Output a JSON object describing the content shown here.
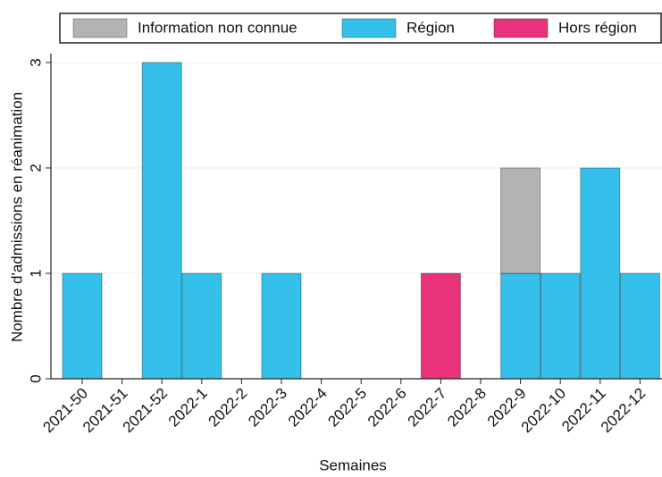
{
  "chart_data": {
    "type": "stacked-bar",
    "categories": [
      "2021-50",
      "2021-51",
      "2021-52",
      "2022-1",
      "2022-2",
      "2022-3",
      "2022-4",
      "2022-5",
      "2022-6",
      "2022-7",
      "2022-8",
      "2022-9",
      "2022-10",
      "2022-11",
      "2022-12"
    ],
    "series": [
      {
        "name": "Information non connue",
        "color": "#b3b3b3",
        "values": [
          0,
          0,
          0,
          0,
          0,
          0,
          0,
          0,
          0,
          0,
          0,
          1,
          0,
          0,
          0
        ]
      },
      {
        "name": "Région",
        "color": "#34c0ea",
        "values": [
          1,
          0,
          3,
          1,
          0,
          1,
          0,
          0,
          0,
          0,
          0,
          1,
          1,
          2,
          1
        ]
      },
      {
        "name": "Hors région",
        "color": "#e8327a",
        "values": [
          0,
          0,
          0,
          0,
          0,
          0,
          0,
          0,
          0,
          1,
          0,
          0,
          0,
          0,
          0
        ]
      }
    ],
    "x_label": "Semaines",
    "y_label": "Nombre d'admissions en réanimation",
    "ylim": [
      0,
      3
    ],
    "yticks": [
      0,
      1,
      2,
      3
    ],
    "grid": true,
    "legend": "top"
  }
}
